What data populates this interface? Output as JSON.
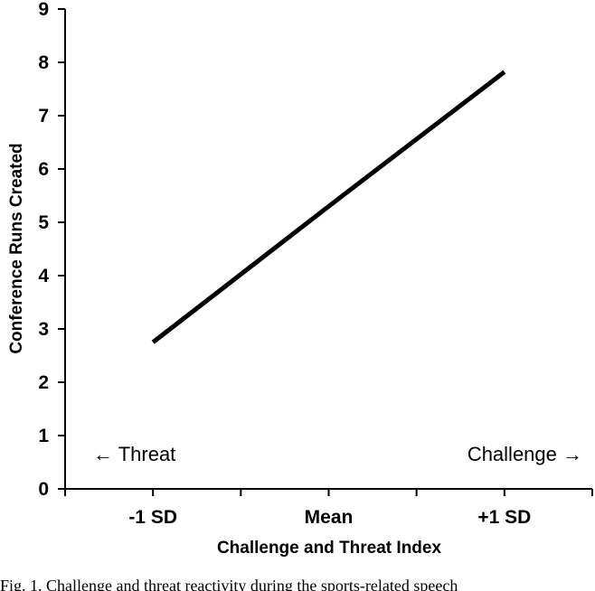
{
  "chart_data": {
    "type": "line",
    "title": "",
    "xlabel": "Challenge and Threat Index",
    "ylabel": "Conference Runs Created",
    "categories": [
      "-1 SD",
      "Mean",
      "+1 SD"
    ],
    "series": [
      {
        "values": [
          2.75,
          5.3,
          7.82
        ],
        "color": "#000000"
      }
    ],
    "ylim": [
      0,
      9
    ],
    "yticks": [
      "0",
      "1",
      "2",
      "3",
      "4",
      "5",
      "6",
      "7",
      "8",
      "9"
    ],
    "grid": false,
    "annotations": {
      "left": "← Threat",
      "right": "Challenge →"
    }
  },
  "caption": "Fig. 1. Challenge and threat reactivity during the sports-related speech"
}
